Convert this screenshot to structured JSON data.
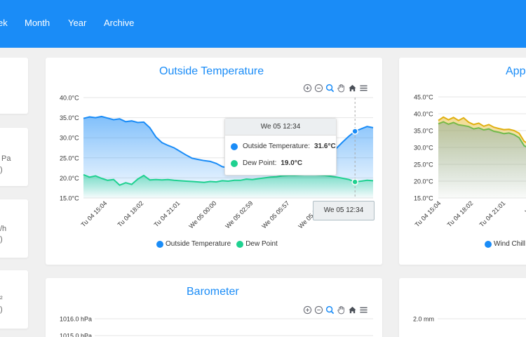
{
  "nav": {
    "items": [
      {
        "label": "ek"
      },
      {
        "label": "Month"
      },
      {
        "label": "Year"
      },
      {
        "label": "Archive"
      }
    ]
  },
  "left_cards": [
    {
      "lines": []
    },
    {
      "lines": [
        "Pa",
        ")"
      ]
    },
    {
      "lines": [
        "/h",
        ")"
      ]
    },
    {
      "lines": [
        "²",
        ")"
      ]
    }
  ],
  "colors": {
    "accent": "#1a8cf7",
    "outside_temp": "#1a8cf7",
    "dew_point": "#1fd190",
    "wind_chill": "#1a8cf7",
    "heat_index": "#e0b010"
  },
  "temp_card": {
    "title": "Outside Temperature",
    "tooltip": {
      "header": "We 05 12:34",
      "rows": [
        {
          "label": "Outside Temperature:",
          "value": "31.6°C"
        },
        {
          "label": "Dew Point:",
          "value": "19.0°C"
        }
      ]
    },
    "xtooltip": "We 05 12:34"
  },
  "apparent_card": {
    "title": "App"
  },
  "barometer_card": {
    "title": "Barometer"
  },
  "rain_card": {},
  "chart_data": [
    {
      "type": "area",
      "title": "Outside Temperature",
      "x_categories": [
        "Tu 04 15:04",
        "Tu 04 18:02",
        "Tu 04 21:01",
        "We 05 00:00",
        "We 05 02:59",
        "We 05 05:57",
        "We 05 08:56",
        "We 0",
        "We 0"
      ],
      "y_ticks": [
        "40.0°C",
        "35.0°C",
        "30.0°C",
        "25.0°C",
        "20.0°C",
        "15.0°C"
      ],
      "ylim": [
        15,
        40
      ],
      "xlim": [
        0,
        24
      ],
      "legend": "bottom",
      "series": [
        {
          "name": "Outside Temperature",
          "x": [
            0,
            0.5,
            1,
            1.5,
            2,
            2.5,
            3,
            3.5,
            4,
            4.5,
            5,
            5.5,
            6,
            6.5,
            7,
            7.5,
            8,
            8.5,
            9,
            9.5,
            10,
            10.5,
            11,
            11.5,
            12,
            12.5,
            13,
            13.5,
            14,
            14.5,
            15,
            15.5,
            16,
            16.5,
            17,
            17.5,
            18,
            18.5,
            19,
            19.5,
            20,
            20.5,
            21,
            21.5,
            22,
            22.5,
            23,
            23.5,
            24
          ],
          "values": [
            34.8,
            35.2,
            35.0,
            35.3,
            34.9,
            34.5,
            34.7,
            34.0,
            34.2,
            33.8,
            33.9,
            32.5,
            30.2,
            28.8,
            28.1,
            27.5,
            26.6,
            25.7,
            24.9,
            24.6,
            24.3,
            24.1,
            23.6,
            22.8,
            22.5,
            22.3,
            22.2,
            21.9,
            21.9,
            21.6,
            21.4,
            21.2,
            21.3,
            21.1,
            21.3,
            21.5,
            21.7,
            22.0,
            22.6,
            23.4,
            24.6,
            26.0,
            27.5,
            29.0,
            30.4,
            31.6,
            32.2,
            32.8,
            32.5
          ]
        },
        {
          "name": "Dew Point",
          "x": [
            0,
            0.5,
            1,
            1.5,
            2,
            2.5,
            3,
            3.5,
            4,
            4.5,
            5,
            5.5,
            6,
            6.5,
            7,
            7.5,
            8,
            8.5,
            9,
            9.5,
            10,
            10.5,
            11,
            11.5,
            12,
            12.5,
            13,
            13.5,
            14,
            14.5,
            15,
            15.5,
            16,
            16.5,
            17,
            17.5,
            18,
            18.5,
            19,
            19.5,
            20,
            20.5,
            21,
            21.5,
            22,
            22.5,
            23,
            23.5,
            24
          ],
          "values": [
            20.8,
            20.2,
            20.5,
            19.9,
            19.4,
            19.6,
            18.2,
            18.8,
            18.4,
            19.7,
            20.6,
            19.5,
            19.6,
            19.5,
            19.6,
            19.4,
            19.3,
            19.2,
            19.1,
            19.0,
            18.9,
            19.1,
            19.0,
            19.3,
            19.2,
            19.4,
            19.4,
            19.7,
            19.6,
            19.8,
            20.0,
            20.2,
            20.3,
            20.5,
            20.6,
            20.6,
            20.7,
            20.8,
            20.8,
            20.7,
            20.6,
            20.4,
            20.2,
            19.9,
            19.6,
            19.0,
            19.2,
            19.4,
            19.3
          ]
        }
      ]
    },
    {
      "type": "area",
      "title": "App",
      "x_categories": [
        "Tu 04 15:04",
        "Tu 04 18:02",
        "Tu 04 21:01",
        "We 0"
      ],
      "y_ticks": [
        "45.0°C",
        "40.0°C",
        "35.0°C",
        "30.0°C",
        "25.0°C",
        "20.0°C",
        "15.0°C"
      ],
      "ylim": [
        15,
        45
      ],
      "legend": "bottom",
      "series": [
        {
          "name": "Wind Chill",
          "x": [
            0,
            0.5,
            1,
            1.5,
            2,
            2.5,
            3,
            3.5,
            4,
            4.5,
            5,
            5.5,
            6,
            6.5,
            7,
            7.5,
            8,
            8.5,
            9,
            9.5,
            10
          ],
          "values": [
            37.0,
            37.6,
            36.9,
            37.4,
            36.7,
            36.5,
            36.2,
            35.5,
            35.8,
            35.2,
            35.5,
            34.8,
            34.5,
            34.1,
            34.3,
            33.8,
            32.9,
            30.5,
            29.8,
            28.6,
            26.8
          ]
        },
        {
          "name": "",
          "x": [
            0,
            0.5,
            1,
            1.5,
            2,
            2.5,
            3,
            3.5,
            4,
            4.5,
            5,
            5.5,
            6,
            6.5,
            7,
            7.5,
            8,
            8.5,
            9,
            9.5,
            10
          ],
          "values": [
            38.0,
            39.0,
            38.2,
            38.9,
            38.0,
            38.8,
            37.5,
            36.8,
            37.2,
            36.3,
            36.8,
            36.0,
            35.6,
            35.3,
            35.4,
            35.0,
            34.2,
            31.8,
            31.0,
            29.8,
            28.0
          ]
        }
      ]
    },
    {
      "type": "line",
      "title": "Barometer",
      "y_ticks": [
        "1016.0 hPa",
        "1015.0 hPa"
      ],
      "series": []
    },
    {
      "type": "bar",
      "y_ticks": [
        "2.0 mm"
      ],
      "series": []
    }
  ]
}
